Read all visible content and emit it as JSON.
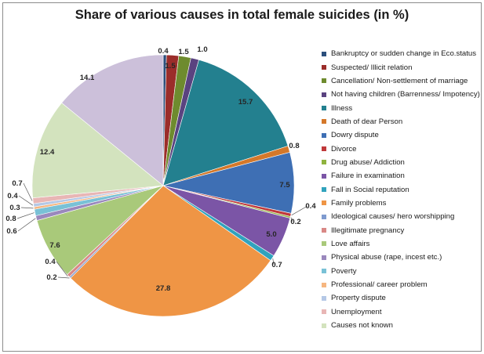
{
  "chart_data": {
    "type": "pie",
    "title": "Share of various causes in total female suicides (in %)",
    "legend_position": "right",
    "start_angle_deg": -90,
    "direction": "clockwise",
    "slices": [
      {
        "name": "Bankruptcy or sudden change in Eco.status",
        "value": 0.4,
        "label": "0.4",
        "color": "#2c4f7c"
      },
      {
        "name": "Suspected/ Illicit relation",
        "value": 1.5,
        "label": "1.5",
        "color": "#9b2d2a"
      },
      {
        "name": "Cancellation/ Non-settlement of marriage",
        "value": 1.5,
        "label": "1.5",
        "color": "#6e8b2e"
      },
      {
        "name": "Not having children (Barrenness/ Impotency)",
        "value": 1.0,
        "label": "1.0",
        "color": "#5a4380"
      },
      {
        "name": "Illness",
        "value": 15.7,
        "label": "15.7",
        "color": "#23808f"
      },
      {
        "name": "Death of dear Person",
        "value": 0.8,
        "label": "0.8",
        "color": "#d4782a"
      },
      {
        "name": "Dowry dispute",
        "value": 7.5,
        "label": "7.5",
        "color": "#3e6fb4"
      },
      {
        "name": "Divorce",
        "value": 0.4,
        "label": "0.4",
        "color": "#c0393a"
      },
      {
        "name": "Drug abuse/ Addiction",
        "value": 0.2,
        "label": "0.2",
        "color": "#8fb33f"
      },
      {
        "name": "Failure in examination",
        "value": 5.0,
        "label": "5.0",
        "color": "#7b55a6"
      },
      {
        "name": "Fall in Social reputation",
        "value": 0.7,
        "label": "0.7",
        "color": "#31a3bd"
      },
      {
        "name": "Family problems",
        "value": 27.8,
        "label": "27.8",
        "color": "#ef9545"
      },
      {
        "name": "Ideological causes/ hero worshipping",
        "value": 0.2,
        "label": "0.2",
        "color": "#7f9bcf"
      },
      {
        "name": "Illegitimate pregnancy",
        "value": 0.4,
        "label": "0.4",
        "color": "#d98886"
      },
      {
        "name": "Love affairs",
        "value": 7.6,
        "label": "7.6",
        "color": "#a9c97a"
      },
      {
        "name": "Physical abuse (rape, incest etc.)",
        "value": 0.6,
        "label": "0.6",
        "color": "#9a88bd"
      },
      {
        "name": "Poverty",
        "value": 0.8,
        "label": "0.8",
        "color": "#79c1d6"
      },
      {
        "name": "Professional/ career problem",
        "value": 0.3,
        "label": "0.3",
        "color": "#f6b680"
      },
      {
        "name": "Property dispute",
        "value": 0.4,
        "label": "0.4",
        "color": "#b5c8e6"
      },
      {
        "name": "Unemployment",
        "value": 0.7,
        "label": "0.7",
        "color": "#e8b6b5"
      },
      {
        "name": "Causes not known",
        "value": 12.4,
        "label": "12.4",
        "color": "#d3e3be"
      },
      {
        "name": "",
        "value": 14.1,
        "label": "14.1",
        "color": "#ccc0da"
      }
    ]
  }
}
